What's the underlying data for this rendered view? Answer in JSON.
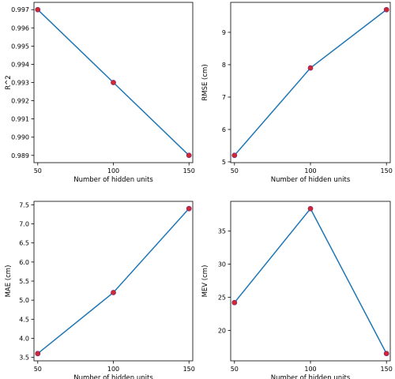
{
  "colors": {
    "line": "#1f77b4",
    "marker_fill": "#d62728",
    "marker_edge": "#7b2f80",
    "axis": "#000000",
    "background": "#ffffff"
  },
  "chart_data": [
    {
      "type": "line",
      "xlabel": "Number of hidden units",
      "ylabel": "R^2",
      "x": [
        50,
        100,
        150
      ],
      "values": [
        0.997,
        0.993,
        0.989
      ],
      "xticks": [
        "50",
        "100",
        "150"
      ],
      "yticks": [
        "0.989",
        "0.990",
        "0.991",
        "0.992",
        "0.993",
        "0.994",
        "0.995",
        "0.996",
        "0.997"
      ],
      "xlim": [
        47.5,
        152.5
      ],
      "ylim": [
        0.9886,
        0.9974
      ],
      "grid": false
    },
    {
      "type": "line",
      "xlabel": "Number of hidden units",
      "ylabel": "RMSE (cm)",
      "x": [
        50,
        100,
        150
      ],
      "values": [
        5.2,
        7.9,
        9.7
      ],
      "xticks": [
        "50",
        "100",
        "150"
      ],
      "yticks": [
        "5",
        "6",
        "7",
        "8",
        "9"
      ],
      "xlim": [
        47.5,
        152.5
      ],
      "ylim": [
        4.975,
        9.925
      ],
      "grid": false
    },
    {
      "type": "line",
      "xlabel": "Number of hidden units",
      "ylabel": "MAE (cm)",
      "x": [
        50,
        100,
        150
      ],
      "values": [
        3.6,
        5.2,
        7.4
      ],
      "xticks": [
        "50",
        "100",
        "150"
      ],
      "yticks": [
        "3.5",
        "4.0",
        "4.5",
        "5.0",
        "5.5",
        "6.0",
        "6.5",
        "7.0",
        "7.5"
      ],
      "xlim": [
        47.5,
        152.5
      ],
      "ylim": [
        3.41,
        7.59
      ],
      "grid": false
    },
    {
      "type": "line",
      "xlabel": "Number of hidden units",
      "ylabel": "MEV (cm)",
      "x": [
        50,
        100,
        150
      ],
      "values": [
        24.2,
        38.4,
        16.5
      ],
      "xticks": [
        "50",
        "100",
        "150"
      ],
      "yticks": [
        "20",
        "25",
        "30",
        "35"
      ],
      "xlim": [
        47.5,
        152.5
      ],
      "ylim": [
        15.4,
        39.5
      ],
      "grid": false
    }
  ]
}
